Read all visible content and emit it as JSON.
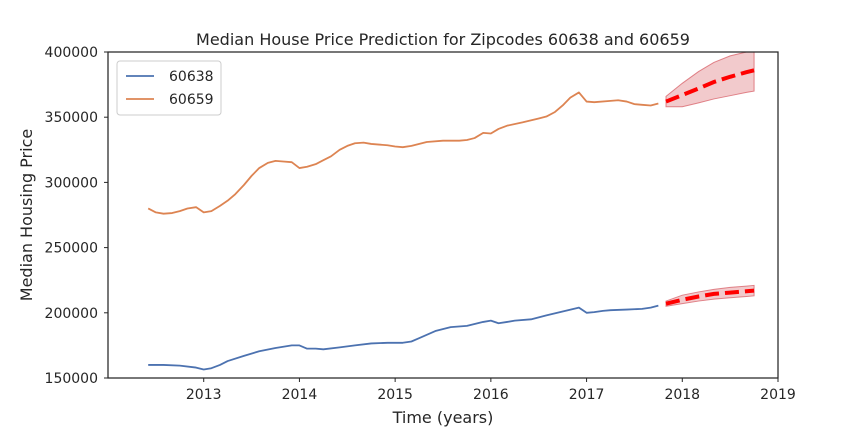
{
  "chart_data": {
    "type": "line",
    "title": "Median House Price Prediction for Zipcodes 60638 and 60659",
    "xlabel": "Time (years)",
    "ylabel": "Median Housing Price",
    "xlim": [
      2012.0,
      2019.0
    ],
    "ylim": [
      150000,
      400000
    ],
    "x_ticks": [
      2013,
      2014,
      2015,
      2016,
      2017,
      2018,
      2019
    ],
    "y_ticks": [
      150000,
      200000,
      250000,
      300000,
      350000,
      400000
    ],
    "grid": false,
    "legend_position": "top-left",
    "series": [
      {
        "name": "60638",
        "color": "#4c72b0",
        "x": [
          2012.42,
          2012.58,
          2012.75,
          2012.92,
          2013.0,
          2013.08,
          2013.17,
          2013.25,
          2013.42,
          2013.58,
          2013.75,
          2013.92,
          2014.0,
          2014.08,
          2014.17,
          2014.25,
          2014.42,
          2014.58,
          2014.75,
          2014.92,
          2015.0,
          2015.08,
          2015.17,
          2015.25,
          2015.42,
          2015.58,
          2015.75,
          2015.92,
          2016.0,
          2016.08,
          2016.17,
          2016.25,
          2016.42,
          2016.58,
          2016.75,
          2016.92,
          2017.0,
          2017.08,
          2017.17,
          2017.25,
          2017.42,
          2017.58,
          2017.67,
          2017.75
        ],
        "y": [
          160000,
          160000,
          159500,
          158000,
          156500,
          157500,
          160000,
          163000,
          167000,
          170500,
          173000,
          175000,
          175000,
          172500,
          172500,
          172000,
          173500,
          175000,
          176500,
          177000,
          177000,
          177000,
          178000,
          180500,
          186000,
          189000,
          190000,
          193000,
          194000,
          192000,
          193000,
          194000,
          195000,
          198000,
          201000,
          204000,
          200000,
          200500,
          201500,
          202000,
          202500,
          203000,
          204000,
          205500
        ]
      },
      {
        "name": "60659",
        "color": "#dd8452",
        "x": [
          2012.42,
          2012.5,
          2012.58,
          2012.67,
          2012.75,
          2012.83,
          2012.92,
          2013.0,
          2013.08,
          2013.17,
          2013.25,
          2013.33,
          2013.42,
          2013.5,
          2013.58,
          2013.67,
          2013.75,
          2013.83,
          2013.92,
          2014.0,
          2014.08,
          2014.17,
          2014.25,
          2014.33,
          2014.42,
          2014.5,
          2014.58,
          2014.67,
          2014.75,
          2014.92,
          2015.0,
          2015.08,
          2015.17,
          2015.33,
          2015.5,
          2015.67,
          2015.75,
          2015.83,
          2015.92,
          2016.0,
          2016.08,
          2016.17,
          2016.33,
          2016.5,
          2016.58,
          2016.67,
          2016.75,
          2016.83,
          2016.92,
          2017.0,
          2017.08,
          2017.25,
          2017.33,
          2017.42,
          2017.5,
          2017.58,
          2017.67,
          2017.75
        ],
        "y": [
          280000,
          277000,
          276000,
          276500,
          278000,
          280000,
          281000,
          277000,
          278000,
          282000,
          286000,
          291000,
          298000,
          305000,
          311000,
          315000,
          316500,
          316000,
          315500,
          311000,
          312000,
          314000,
          317000,
          320000,
          325000,
          328000,
          330000,
          330500,
          329500,
          328500,
          327500,
          327000,
          328000,
          331000,
          332000,
          332000,
          332500,
          334000,
          338000,
          337500,
          341000,
          343500,
          346000,
          349000,
          350500,
          354000,
          359000,
          365000,
          369000,
          362000,
          361500,
          362500,
          363000,
          362000,
          360000,
          359500,
          359000,
          360500
        ]
      }
    ],
    "forecasts": [
      {
        "for_series": "60638",
        "color": "#ff0000",
        "x": [
          2017.83,
          2018.0,
          2018.17,
          2018.33,
          2018.5,
          2018.67,
          2018.75
        ],
        "y": [
          207000,
          210000,
          212500,
          214500,
          215500,
          216500,
          217000
        ],
        "lower": [
          205000,
          207000,
          209000,
          210500,
          211500,
          212500,
          213000
        ],
        "upper": [
          209000,
          213500,
          216000,
          218000,
          219500,
          220500,
          221000
        ],
        "band_color": "#d9666e"
      },
      {
        "for_series": "60659",
        "color": "#ff0000",
        "x": [
          2017.83,
          2018.0,
          2018.17,
          2018.33,
          2018.5,
          2018.67,
          2018.75
        ],
        "y": [
          362000,
          367000,
          372000,
          377000,
          381000,
          384500,
          386000
        ],
        "lower": [
          358000,
          358000,
          361000,
          364000,
          366500,
          369000,
          370000
        ],
        "upper": [
          366000,
          376000,
          385000,
          392000,
          397000,
          400000,
          400000
        ],
        "band_color": "#d9666e"
      }
    ]
  }
}
